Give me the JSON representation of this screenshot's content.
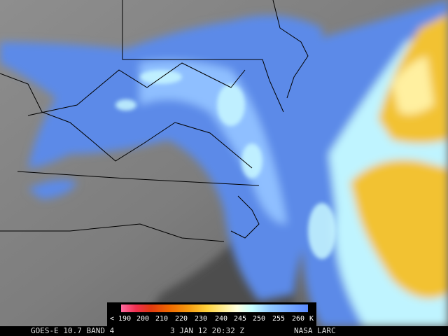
{
  "legend": {
    "labels": [
      "< 190",
      "200",
      "210",
      "220",
      "230",
      "240",
      "245",
      "250",
      "255",
      "260",
      "K"
    ]
  },
  "footer": {
    "satellite": "GOES-E 10.7 BAND 4",
    "time": "3 JAN 12 20:32 Z",
    "source": "NASA LARC"
  }
}
